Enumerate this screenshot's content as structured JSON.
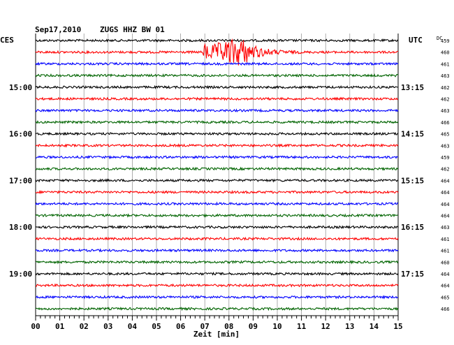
{
  "header": {
    "date": "Sep17,2010",
    "station": "ZUGS HHZ BW 01",
    "left_tz": "CES",
    "right_tz": "UTC",
    "dc_label": "DC"
  },
  "chart_data": {
    "type": "line",
    "title": "Sep17,2010  ZUGS HHZ BW 01",
    "xlabel": "Zeit [min]",
    "x_ticks": [
      "00",
      "01",
      "02",
      "03",
      "04",
      "05",
      "06",
      "07",
      "08",
      "09",
      "10",
      "11",
      "12",
      "13",
      "14",
      "15"
    ],
    "xlim": [
      0,
      15
    ],
    "rows": 24,
    "trace_colors": [
      "#000000",
      "#ff0000",
      "#0000ff",
      "#006400"
    ],
    "left_time_labels": [
      {
        "row": 4,
        "label": "15:00"
      },
      {
        "row": 8,
        "label": "16:00"
      },
      {
        "row": 12,
        "label": "17:00"
      },
      {
        "row": 16,
        "label": "18:00"
      },
      {
        "row": 20,
        "label": "19:00"
      }
    ],
    "right_time_labels": [
      {
        "row": 4,
        "label": "13:15"
      },
      {
        "row": 8,
        "label": "14:15"
      },
      {
        "row": 12,
        "label": "15:15"
      },
      {
        "row": 16,
        "label": "16:15"
      },
      {
        "row": 20,
        "label": "17:15"
      }
    ],
    "dc_values": [
      "459",
      "460",
      "461",
      "463",
      "462",
      "462",
      "463",
      "466",
      "465",
      "463",
      "459",
      "462",
      "464",
      "464",
      "464",
      "464",
      "463",
      "461",
      "461",
      "460",
      "464",
      "464",
      "465",
      "466"
    ],
    "event": {
      "row": 1,
      "start_min": 6.9,
      "peak_min": 8.5,
      "end_min": 11.0
    }
  }
}
